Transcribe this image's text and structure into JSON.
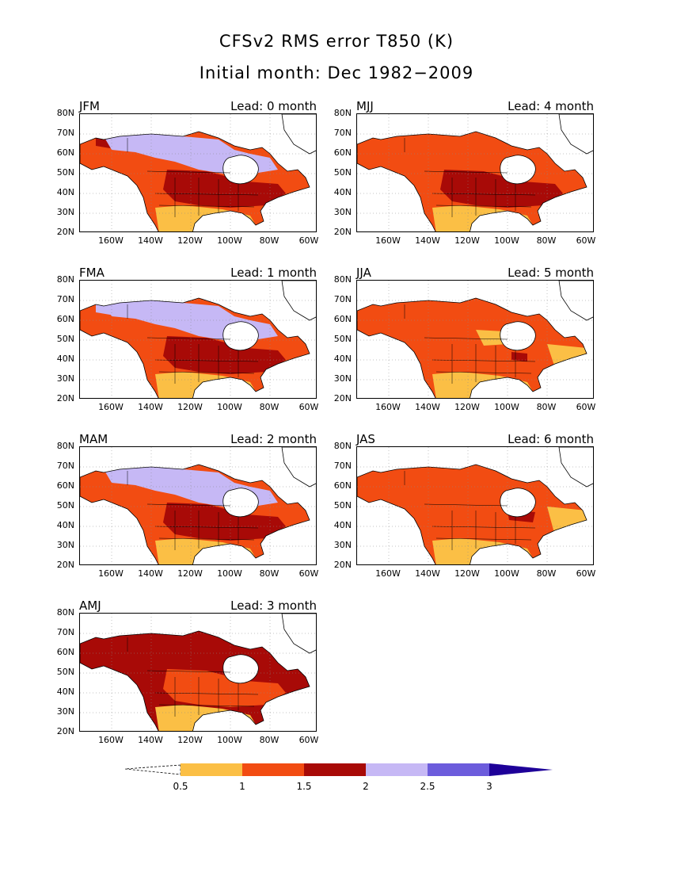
{
  "title": "CFSv2 RMS error T850 (K)",
  "subtitle": "Initial month: Dec 1982−2009",
  "y_ticks": [
    "80N",
    "70N",
    "60N",
    "50N",
    "40N",
    "30N",
    "20N"
  ],
  "x_ticks": [
    "160W",
    "140W",
    "120W",
    "100W",
    "80W",
    "60W"
  ],
  "panels": [
    {
      "season": "JFM",
      "lead": "Lead: 0 month"
    },
    {
      "season": "MJJ",
      "lead": "Lead: 4 month"
    },
    {
      "season": "FMA",
      "lead": "Lead: 1 month"
    },
    {
      "season": "JJA",
      "lead": "Lead: 5 month"
    },
    {
      "season": "MAM",
      "lead": "Lead: 2 month"
    },
    {
      "season": "JAS",
      "lead": "Lead: 6 month"
    },
    {
      "season": "AMJ",
      "lead": "Lead: 3 month"
    }
  ],
  "colorbar": {
    "labels": [
      "0.5",
      "1",
      "1.5",
      "2",
      "2.5",
      "3"
    ],
    "colors": [
      "#fbbf45",
      "#f24c12",
      "#a80a07",
      "#c6b8f5",
      "#6c5cdc",
      "#1e0099"
    ]
  }
}
